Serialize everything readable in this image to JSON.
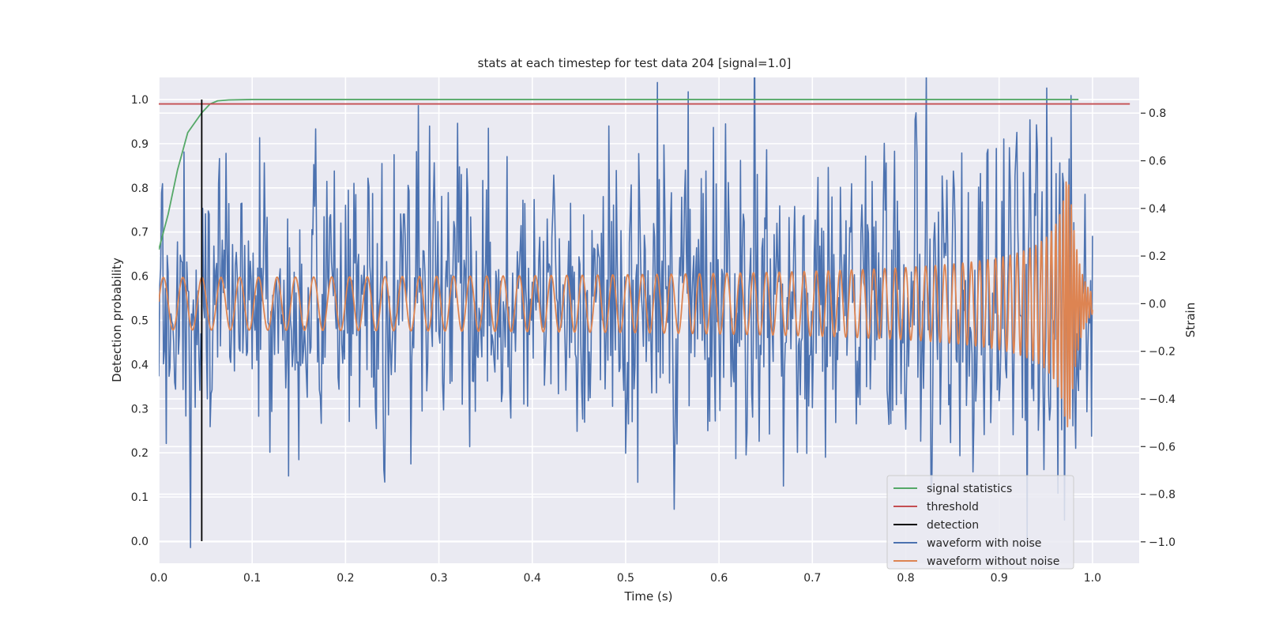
{
  "chart_data": {
    "type": "line",
    "title": "stats at each timestep for test data 204 [signal=1.0]",
    "xlabel": "Time (s)",
    "ylabel": "Detection probability",
    "y2label": "Strain",
    "xlim": [
      0.0,
      1.05
    ],
    "ylim": [
      -0.05,
      1.05
    ],
    "y2lim": [
      -1.09,
      0.95
    ],
    "xticks": [
      "0.0",
      "0.1",
      "0.2",
      "0.3",
      "0.4",
      "0.5",
      "0.6",
      "0.7",
      "0.8",
      "0.9",
      "1.0"
    ],
    "yticks": [
      "0.0",
      "0.1",
      "0.2",
      "0.3",
      "0.4",
      "0.5",
      "0.6",
      "0.7",
      "0.8",
      "0.9",
      "1.0"
    ],
    "y2ticks": [
      "−1.0",
      "−0.8",
      "−0.6",
      "−0.4",
      "−0.2",
      "0.0",
      "0.2",
      "0.4",
      "0.6",
      "0.8"
    ],
    "grid": true,
    "legend_position": "lower-right",
    "series": [
      {
        "name": "signal statistics",
        "axis": "left",
        "color": "#55a868",
        "x": [
          0.0,
          0.01,
          0.02,
          0.031,
          0.046,
          0.055,
          0.063,
          0.075,
          0.1,
          0.2,
          0.5,
          0.8,
          0.985
        ],
        "y": [
          0.66,
          0.74,
          0.84,
          0.925,
          0.97,
          0.99,
          0.997,
          0.999,
          1.0,
          1.0,
          1.0,
          1.0,
          1.0
        ]
      },
      {
        "name": "threshold",
        "axis": "left",
        "color": "#c44e52",
        "x": [
          0.0,
          1.04
        ],
        "y": [
          0.99,
          0.99
        ]
      },
      {
        "name": "detection",
        "axis": "left",
        "color": "#000000",
        "x": [
          0.046,
          0.046
        ],
        "y": [
          0.0,
          1.0
        ]
      },
      {
        "name": "waveform with noise",
        "axis": "right",
        "color": "#4c72b0",
        "noise": {
          "n": 1000,
          "t_end": 1.0,
          "sigma": 0.32,
          "seed": 204
        }
      },
      {
        "name": "waveform without noise",
        "axis": "right",
        "color": "#dd8452",
        "chirp": {
          "t_end": 1.0,
          "merger": 0.975,
          "amp_base": 0.11,
          "amp_peak": 0.52,
          "f_base": 48,
          "ringdown": 0.01
        }
      }
    ]
  }
}
